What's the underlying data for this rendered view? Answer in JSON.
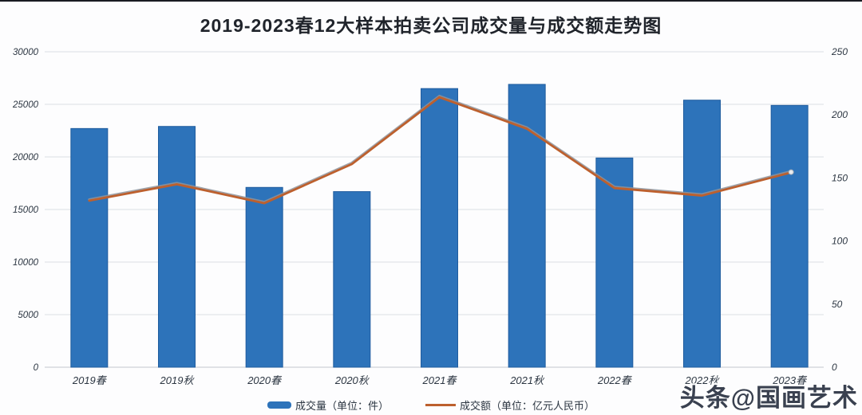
{
  "watermark": {
    "text": "头条@国画艺术"
  },
  "chart_data": {
    "type": "combo",
    "title": "2019-2023春12大样本拍卖公司成交量与成交额走势图",
    "categories": [
      "2019春",
      "2019秋",
      "2020春",
      "2020秋",
      "2021春",
      "2021秋",
      "2022春",
      "2022秋",
      "2023春"
    ],
    "series": [
      {
        "name": "成交量（单位：件）",
        "type": "bar",
        "axis": "left",
        "values": [
          22700,
          22900,
          17100,
          16700,
          26500,
          26900,
          19900,
          25400,
          24900
        ]
      },
      {
        "name": "成交额（单位：亿元人民币）",
        "type": "line",
        "axis": "right",
        "values": [
          132,
          145,
          130,
          161,
          214,
          189,
          142,
          136,
          154
        ]
      }
    ],
    "left_axis": {
      "min": 0,
      "max": 30000,
      "ticks": [
        0,
        5000,
        10000,
        15000,
        20000,
        25000,
        30000
      ]
    },
    "right_axis": {
      "min": 0,
      "max": 250,
      "ticks": [
        0,
        50,
        100,
        150,
        200,
        250
      ]
    },
    "grid": true,
    "legend_position": "bottom",
    "colors": {
      "bar": "#2d73ba",
      "bar_edge": "#1f5c9e",
      "line": "#bd602e",
      "line_shadow": "#8e949c",
      "grid": "#dcdfe4",
      "zero_line": "#c2c7ce",
      "axis_text": "#2c3642",
      "title_text": "#20242b",
      "watermark_text": "#3a4150"
    }
  }
}
